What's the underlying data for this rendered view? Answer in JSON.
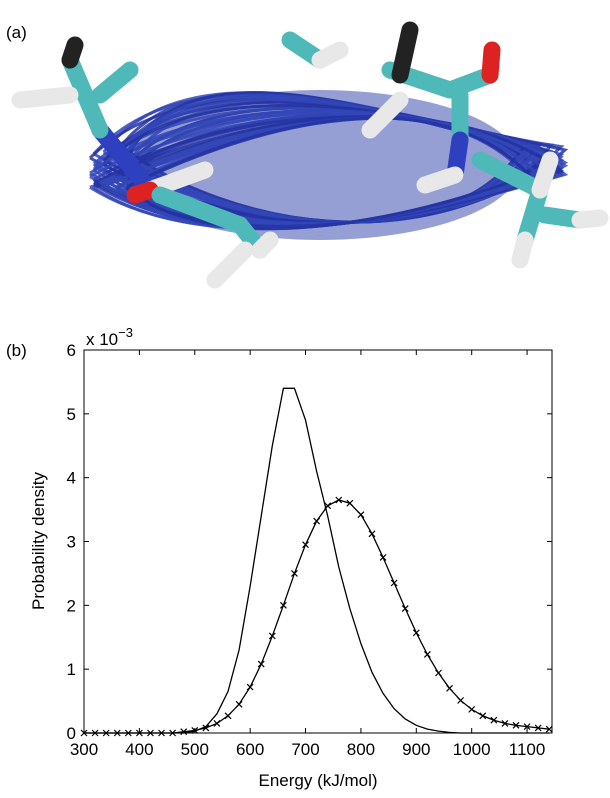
{
  "panel_a_label": "(a)",
  "chart_data": {
    "type": "line",
    "panel_label": "(b)",
    "x_label": "Energy (kJ/mol)",
    "y_label": "Probability density",
    "multiplier_base": "x 10",
    "multiplier_exponent": "−3",
    "x": [
      300,
      320,
      340,
      360,
      380,
      400,
      420,
      440,
      460,
      480,
      500,
      520,
      540,
      560,
      580,
      600,
      620,
      640,
      660,
      680,
      700,
      720,
      740,
      760,
      780,
      800,
      820,
      840,
      860,
      880,
      900,
      920,
      940,
      960,
      980,
      1000,
      1020,
      1040,
      1060,
      1080,
      1100,
      1120,
      1140
    ],
    "series": [
      {
        "color": "#000000",
        "marker": "none",
        "values": [
          0,
          0,
          0,
          0,
          0,
          0,
          0,
          0,
          0,
          0,
          0.03,
          0.1,
          0.3,
          0.65,
          1.3,
          2.3,
          3.4,
          4.5,
          5.4,
          5.4,
          4.9,
          4.1,
          3.4,
          2.6,
          1.95,
          1.4,
          0.95,
          0.62,
          0.38,
          0.22,
          0.12,
          0.06,
          0.03,
          0.01,
          0,
          0,
          0,
          0,
          0,
          0,
          0,
          0,
          0
        ]
      },
      {
        "color": "#000000",
        "marker": "x",
        "values": [
          0,
          0,
          0,
          0,
          0,
          0,
          0,
          0,
          0,
          0.02,
          0.04,
          0.08,
          0.15,
          0.27,
          0.45,
          0.72,
          1.08,
          1.52,
          2.0,
          2.5,
          2.95,
          3.32,
          3.56,
          3.65,
          3.6,
          3.42,
          3.12,
          2.75,
          2.35,
          1.95,
          1.57,
          1.23,
          0.94,
          0.7,
          0.51,
          0.37,
          0.27,
          0.2,
          0.15,
          0.12,
          0.1,
          0.08,
          0.06
        ]
      }
    ],
    "xlim": [
      300,
      1145
    ],
    "ylim": [
      0,
      6
    ],
    "xticks": [
      300,
      400,
      500,
      600,
      700,
      800,
      900,
      1000,
      1100
    ],
    "yticks": [
      0,
      1,
      2,
      3,
      4,
      5,
      6
    ],
    "grid": false
  }
}
